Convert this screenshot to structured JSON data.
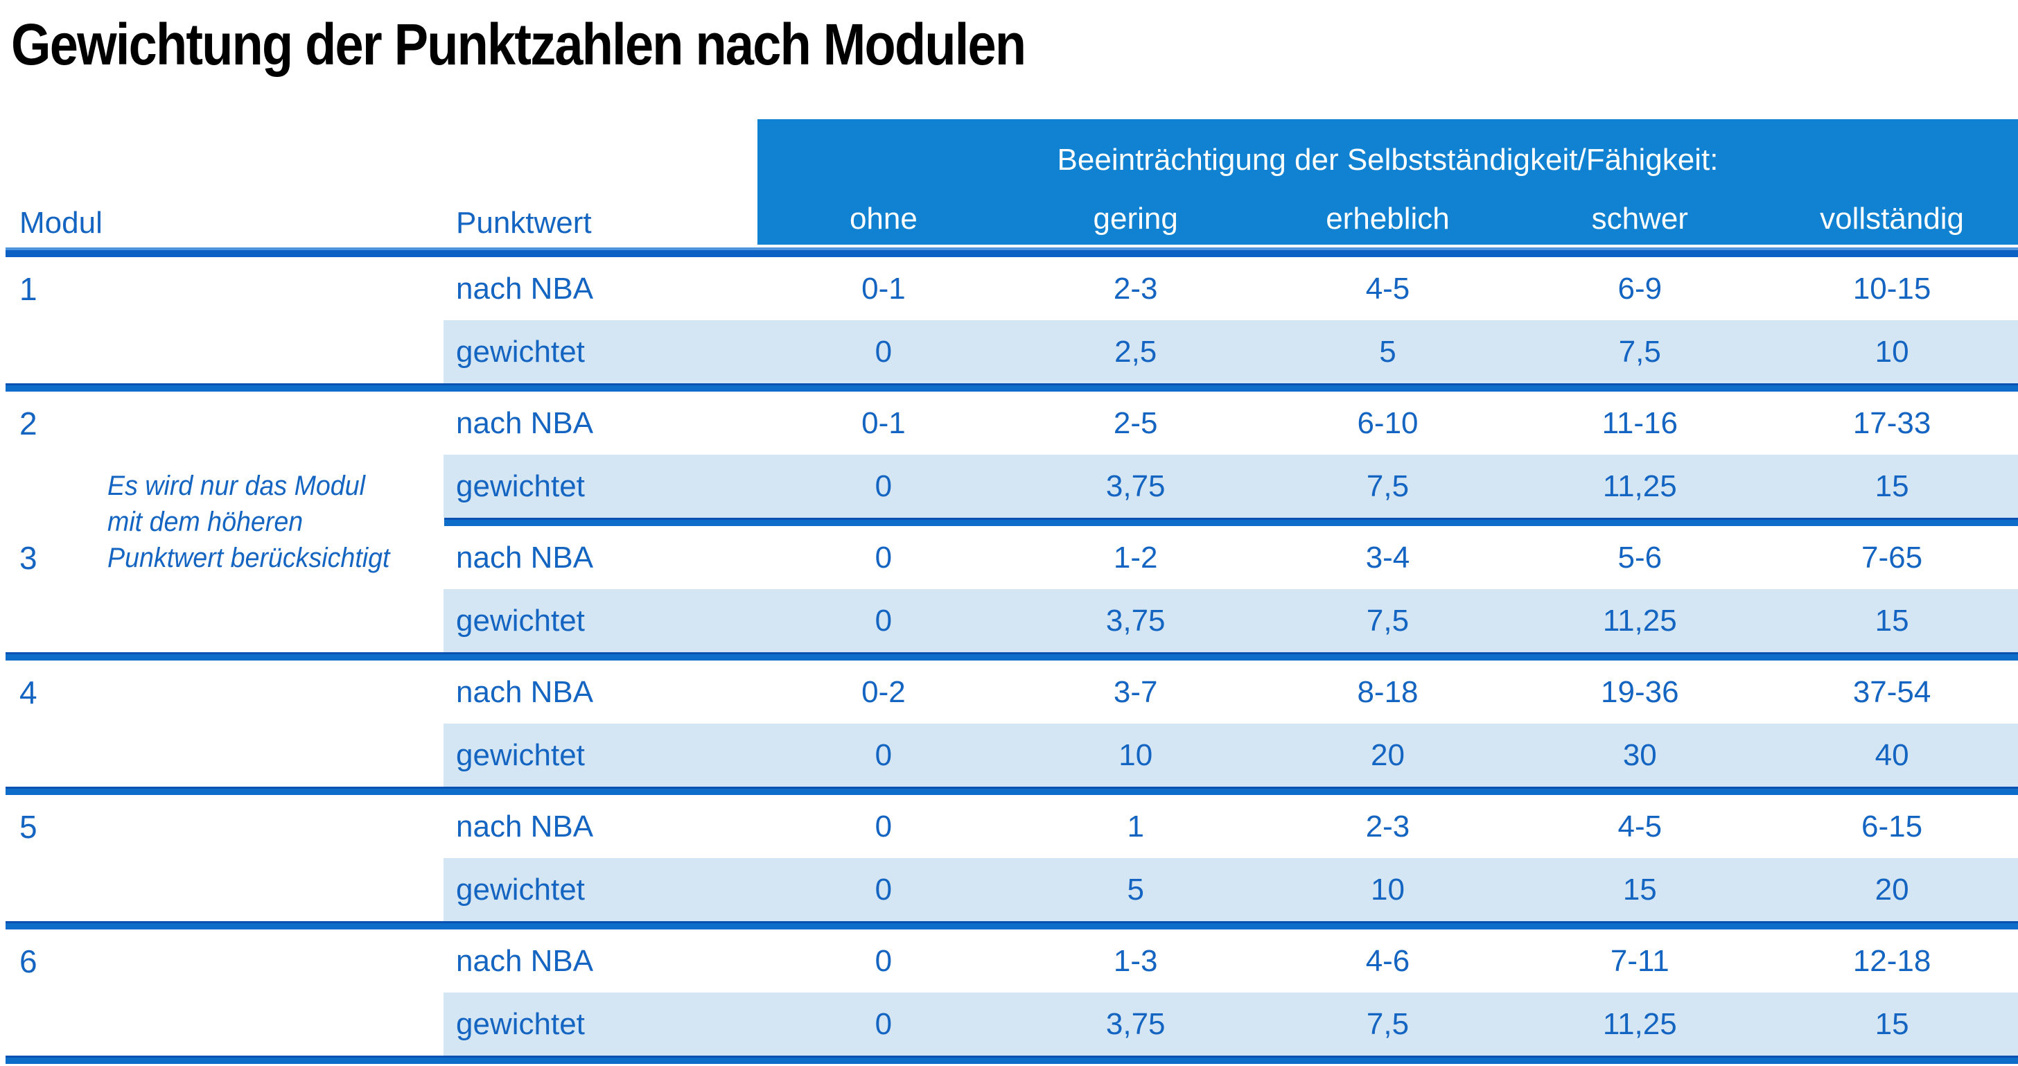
{
  "title": "Gewichtung der Punktzahlen nach Modulen",
  "table": {
    "span_header": "Beeinträchtigung der Selbstständigkeit/Fähigkeit:",
    "col_headers": {
      "modul": "Modul",
      "punktwert": "Punktwert"
    },
    "severity_levels": [
      "ohne",
      "gering",
      "erheblich",
      "schwer",
      "vollständig"
    ],
    "row_labels": {
      "nba": "nach NBA",
      "weighted": "gewichtet"
    },
    "note": {
      "line1": "Es wird nur das Modul",
      "line2": "mit dem höheren",
      "line3": "Punktwert berücksichtigt"
    },
    "modules": [
      {
        "number": "1",
        "nba": [
          "0-1",
          "2-3",
          "4-5",
          "6-9",
          "10-15"
        ],
        "weighted": [
          "0",
          "2,5",
          "5",
          "7,5",
          "10"
        ]
      },
      {
        "number": "2",
        "nba": [
          "0-1",
          "2-5",
          "6-10",
          "11-16",
          "17-33"
        ],
        "weighted": [
          "0",
          "3,75",
          "7,5",
          "11,25",
          "15"
        ]
      },
      {
        "number": "3",
        "nba": [
          "0",
          "1-2",
          "3-4",
          "5-6",
          "7-65"
        ],
        "weighted": [
          "0",
          "3,75",
          "7,5",
          "11,25",
          "15"
        ]
      },
      {
        "number": "4",
        "nba": [
          "0-2",
          "3-7",
          "8-18",
          "19-36",
          "37-54"
        ],
        "weighted": [
          "0",
          "10",
          "20",
          "30",
          "40"
        ]
      },
      {
        "number": "5",
        "nba": [
          "0",
          "1",
          "2-3",
          "4-5",
          "6-15"
        ],
        "weighted": [
          "0",
          "5",
          "10",
          "15",
          "20"
        ]
      },
      {
        "number": "6",
        "nba": [
          "0",
          "1-3",
          "4-6",
          "7-11",
          "12-18"
        ],
        "weighted": [
          "0",
          "3,75",
          "7,5",
          "11,25",
          "15"
        ]
      }
    ]
  },
  "colors": {
    "header_blue": "#1182d2",
    "rule_blue": "#0b60c4",
    "divider_blue": "#0f6dca",
    "text_blue": "#1464c2",
    "row_light_blue": "#d4e6f4",
    "title_black": "#000000"
  }
}
